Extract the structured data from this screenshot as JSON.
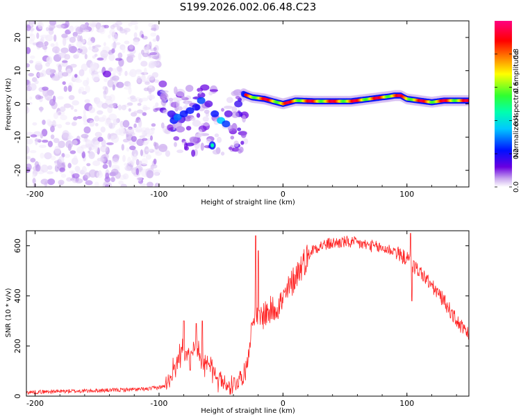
{
  "figure_title": "S199.2026.002.06.48.C23",
  "chart_data": [
    {
      "type": "heatmap",
      "title": "S199.2026.002.06.48.C23",
      "xlabel": "Height of straight line (km)",
      "ylabel": "Frequency (Hz)",
      "xlim": [
        -207,
        150
      ],
      "ylim": [
        -25,
        25
      ],
      "x_ticks": [
        -200,
        -100,
        0,
        100
      ],
      "x_tick_labels": [
        "-200",
        "-100",
        "0",
        "100"
      ],
      "y_ticks": [
        20,
        10,
        0,
        -10,
        -20
      ],
      "y_tick_labels": [
        "20",
        "10",
        "0",
        "-10",
        "-20"
      ],
      "colorbar": {
        "label": "Normalized spectral amplitude",
        "range": [
          0,
          1
        ],
        "ticks": [
          0.0,
          0.2,
          0.4,
          0.6,
          0.8
        ],
        "tick_labels": [
          "0.0",
          "0.2",
          "0.4",
          "0.6",
          "0.8"
        ],
        "colors": [
          "#ffffff",
          "#c9a8ee",
          "#6a00e0",
          "#0010ff",
          "#00c8ff",
          "#00ffb0",
          "#30ff30",
          "#ffff00",
          "#ff8000",
          "#ff0000",
          "#ff0080"
        ]
      },
      "features": [
        {
          "name": "noise field",
          "x_range": [
            -207,
            -100
          ],
          "y_range": [
            -25,
            25
          ],
          "amplitude": 0.15
        },
        {
          "name": "transition blobs",
          "x_range": [
            -100,
            -30
          ],
          "y_range": [
            -15,
            5
          ],
          "amplitude": 0.45
        },
        {
          "name": "isolated blob",
          "x": -57,
          "y": -12.5,
          "amplitude": 0.5
        },
        {
          "name": "ridge",
          "x_range": [
            -32,
            150
          ],
          "y_center": 1,
          "amplitude": 0.95
        }
      ],
      "ridge": {
        "x": [
          -32,
          -25,
          -15,
          -5,
          0,
          10,
          25,
          40,
          55,
          70,
          80,
          85,
          90,
          95,
          100,
          110,
          120,
          130,
          140,
          150
        ],
        "frequency": [
          3,
          2,
          1.5,
          0.5,
          0,
          1,
          0.8,
          0.8,
          0.8,
          1.5,
          2,
          2.2,
          2.5,
          2.5,
          1.5,
          1,
          0.5,
          1,
          1,
          1
        ]
      }
    },
    {
      "type": "line",
      "xlabel": "Height of straight line (km)",
      "ylabel": "SNR (10 * v/v)",
      "xlim": [
        -207,
        150
      ],
      "ylim": [
        0,
        660
      ],
      "x_ticks": [
        -200,
        -100,
        0,
        100
      ],
      "x_tick_labels": [
        "-200",
        "-100",
        "0",
        "100"
      ],
      "y_ticks": [
        0,
        200,
        400,
        600
      ],
      "y_tick_labels": [
        "0",
        "200",
        "400",
        "600"
      ],
      "line_color": "#ff2020",
      "series": [
        {
          "name": "SNR",
          "x": [
            -207,
            -190,
            -170,
            -150,
            -130,
            -110,
            -100,
            -95,
            -90,
            -85,
            -80,
            -75,
            -70,
            -65,
            -60,
            -55,
            -50,
            -45,
            -40,
            -35,
            -30,
            -25,
            -22,
            -20,
            -15,
            -10,
            -5,
            0,
            5,
            10,
            15,
            20,
            25,
            30,
            40,
            50,
            60,
            70,
            80,
            90,
            95,
            100,
            105,
            110,
            120,
            130,
            140,
            150
          ],
          "values": [
            15,
            18,
            20,
            22,
            25,
            28,
            35,
            40,
            80,
            150,
            180,
            160,
            200,
            120,
            140,
            90,
            60,
            40,
            45,
            70,
            100,
            280,
            350,
            300,
            330,
            340,
            360,
            380,
            430,
            480,
            520,
            560,
            590,
            600,
            610,
            615,
            610,
            600,
            590,
            580,
            560,
            550,
            520,
            500,
            440,
            380,
            300,
            240
          ],
          "spikes": [
            {
              "x": -22,
              "value": 640
            },
            {
              "x": -20,
              "value": 580
            },
            {
              "x": -80,
              "value": 300
            },
            {
              "x": -70,
              "value": 290
            },
            {
              "x": -65,
              "value": 300
            },
            {
              "x": 103,
              "value": 650
            },
            {
              "x": 104,
              "value": 380
            }
          ]
        }
      ]
    }
  ]
}
